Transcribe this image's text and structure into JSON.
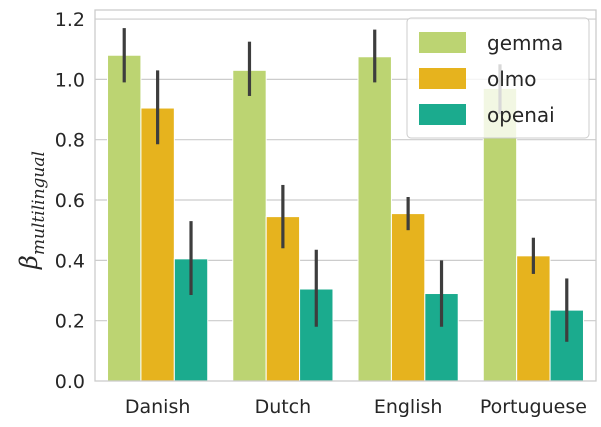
{
  "chart_data": {
    "type": "bar",
    "categories": [
      "Danish",
      "Dutch",
      "English",
      "Portuguese"
    ],
    "series": [
      {
        "name": "gemma",
        "color": "#bcd472",
        "values": [
          1.08,
          1.03,
          1.075,
          0.97
        ],
        "err_low": [
          0.99,
          0.945,
          0.99,
          0.885
        ],
        "err_high": [
          1.17,
          1.125,
          1.165,
          1.05
        ]
      },
      {
        "name": "olmo",
        "color": "#e6b31e",
        "values": [
          0.905,
          0.545,
          0.555,
          0.415
        ],
        "err_low": [
          0.785,
          0.44,
          0.5,
          0.355
        ],
        "err_high": [
          1.03,
          0.65,
          0.61,
          0.475
        ]
      },
      {
        "name": "openai",
        "color": "#1bab8e",
        "values": [
          0.405,
          0.305,
          0.29,
          0.235
        ],
        "err_low": [
          0.285,
          0.18,
          0.18,
          0.13
        ],
        "err_high": [
          0.53,
          0.435,
          0.4,
          0.34
        ]
      }
    ],
    "ylabel_symbol": "β",
    "ylabel_subscript": "multilingual",
    "ylim": [
      0,
      1.23
    ],
    "yticks": [
      "0.0",
      "0.2",
      "0.4",
      "0.6",
      "0.8",
      "1.0",
      "1.2"
    ],
    "grid": "horizontal",
    "legend_position": "top-right"
  }
}
